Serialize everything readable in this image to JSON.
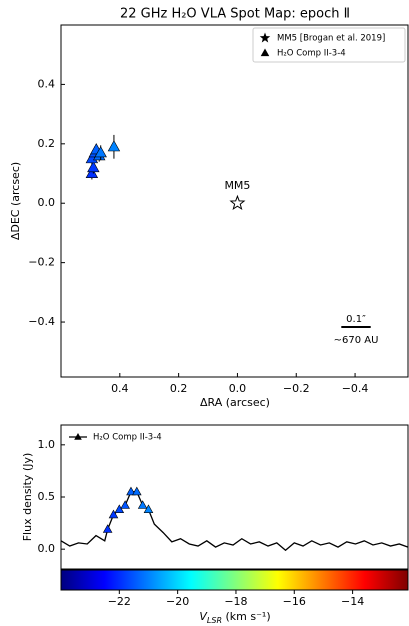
{
  "chart_data": [
    {
      "type": "scatter",
      "title": "22 GHz H₂O VLA Spot Map: epoch Ⅱ",
      "xlabel": "ΔRA (arcsec)",
      "ylabel": "ΔDEC (arcsec)",
      "xlim": [
        0.6,
        -0.58
      ],
      "ylim": [
        -0.585,
        0.6
      ],
      "xticks": [
        {
          "value": 0.4,
          "label": "0.4"
        },
        {
          "value": 0.2,
          "label": "0.2"
        },
        {
          "value": 0,
          "label": "0.0"
        },
        {
          "value": -0.2,
          "label": "−0.2"
        },
        {
          "value": -0.4,
          "label": "−0.4"
        }
      ],
      "yticks": [
        {
          "value": 0.4,
          "label": "0.4"
        },
        {
          "value": 0.2,
          "label": "0.2"
        },
        {
          "value": 0,
          "label": "0.0"
        },
        {
          "value": -0.2,
          "label": "−0.2"
        },
        {
          "value": -0.4,
          "label": "−0.4"
        }
      ],
      "legend": "upper right",
      "series": [
        {
          "name": "MM5 [Brogan et al. 2019]",
          "marker": "star",
          "color": "#ffffff",
          "x": [
            0
          ],
          "values": [
            0
          ],
          "label": "MM5"
        },
        {
          "name": "H₂O Comp II-3-4",
          "marker": "triangle",
          "x": [
            0.495,
            0.49,
            0.495,
            0.485,
            0.48,
            0.47,
            0.465,
            0.42
          ],
          "values": [
            0.1,
            0.12,
            0.15,
            0.17,
            0.18,
            0.16,
            0.17,
            0.19
          ],
          "errors": [
            0.02,
            0.02,
            0.02,
            0.02,
            0.02,
            0.02,
            0.025,
            0.04
          ],
          "colors": [
            "#0030ff",
            "#0038ff",
            "#0048ff",
            "#0054ff",
            "#0060ff",
            "#006cff",
            "#0078ff",
            "#0084ff"
          ]
        }
      ],
      "scale_bar": {
        "length": 0.1,
        "label": "0.1″",
        "sublabel": "~670 AU"
      }
    },
    {
      "type": "line",
      "ylabel": "Flux density (Jy)",
      "xlim": [
        -24,
        -12.1
      ],
      "ylim": [
        -0.19,
        1.19
      ],
      "yticks": [
        {
          "value": 0,
          "label": "0.0"
        },
        {
          "value": 0.5,
          "label": "0.5"
        },
        {
          "value": 1,
          "label": "1.0"
        }
      ],
      "xticks": [
        {
          "value": -22,
          "label": "−22"
        },
        {
          "value": -20,
          "label": "−20"
        },
        {
          "value": -18,
          "label": "−18"
        },
        {
          "value": -16,
          "label": "−16"
        },
        {
          "value": -14,
          "label": "−14"
        }
      ],
      "legend": "upper left",
      "series": [
        {
          "color": "#000000",
          "x": [
            -24.0,
            -23.7,
            -23.4,
            -23.1,
            -22.8,
            -22.5,
            -22.4,
            -22.2,
            -22.0,
            -21.8,
            -21.6,
            -21.4,
            -21.2,
            -21.0,
            -20.8,
            -20.5,
            -20.2,
            -19.9,
            -19.6,
            -19.3,
            -19.0,
            -18.7,
            -18.4,
            -18.1,
            -17.8,
            -17.5,
            -17.2,
            -16.9,
            -16.6,
            -16.3,
            -16.0,
            -15.7,
            -15.4,
            -15.1,
            -14.8,
            -14.5,
            -14.2,
            -13.9,
            -13.6,
            -13.3,
            -13.0,
            -12.7,
            -12.4,
            -12.1
          ],
          "values": [
            0.08,
            0.03,
            0.06,
            0.05,
            0.13,
            0.08,
            0.19,
            0.33,
            0.38,
            0.42,
            0.55,
            0.55,
            0.42,
            0.38,
            0.24,
            0.16,
            0.07,
            0.1,
            0.05,
            0.03,
            0.08,
            0.02,
            0.06,
            0.04,
            0.1,
            0.05,
            0.07,
            0.03,
            0.06,
            -0.01,
            0.06,
            0.03,
            0.08,
            0.04,
            0.06,
            0.02,
            0.07,
            0.05,
            0.08,
            0.04,
            0.06,
            0.03,
            0.05,
            0.02
          ]
        },
        {
          "name": "H₂O Comp II-3-4",
          "marker": "triangle",
          "x": [
            -22.4,
            -22.2,
            -22.0,
            -21.8,
            -21.6,
            -21.4,
            -21.2,
            -21.0
          ],
          "values": [
            0.19,
            0.33,
            0.38,
            0.42,
            0.55,
            0.55,
            0.42,
            0.38
          ],
          "colors": [
            "#0030ff",
            "#0038ff",
            "#0048ff",
            "#0054ff",
            "#0060ff",
            "#006cff",
            "#0078ff",
            "#0084ff"
          ]
        }
      ],
      "colorbar": {
        "colors": [
          "#00007f",
          "#0000ff",
          "#007fff",
          "#00ffff",
          "#7fff7f",
          "#ffff00",
          "#ff7f00",
          "#ff0000",
          "#7f0000"
        ],
        "label": {
          "symbol": "V",
          "subscript": "LSR",
          "unit": " (km s⁻¹)"
        }
      }
    }
  ]
}
